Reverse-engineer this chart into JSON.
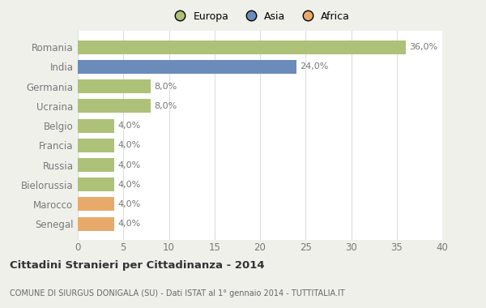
{
  "categories": [
    "Romania",
    "India",
    "Germania",
    "Ucraina",
    "Belgio",
    "Francia",
    "Russia",
    "Bielorussia",
    "Marocco",
    "Senegal"
  ],
  "values": [
    36.0,
    24.0,
    8.0,
    8.0,
    4.0,
    4.0,
    4.0,
    4.0,
    4.0,
    4.0
  ],
  "colors": [
    "#adc178",
    "#6b8cba",
    "#adc178",
    "#adc178",
    "#adc178",
    "#adc178",
    "#adc178",
    "#adc178",
    "#e8aa6a",
    "#e8aa6a"
  ],
  "legend_labels": [
    "Europa",
    "Asia",
    "Africa"
  ],
  "legend_colors": [
    "#adc178",
    "#6b8cba",
    "#e8aa6a"
  ],
  "xlim": [
    0,
    40
  ],
  "xticks": [
    0,
    5,
    10,
    15,
    20,
    25,
    30,
    35,
    40
  ],
  "title_bold": "Cittadini Stranieri per Cittadinanza - 2014",
  "subtitle": "COMUNE DI SIURGUS DONIGALA (SU) - Dati ISTAT al 1° gennaio 2014 - TUTTITALIA.IT",
  "bg_color": "#f0f0eb",
  "plot_bg_color": "#ffffff",
  "grid_color": "#dddddd",
  "label_color": "#777777",
  "value_label_color": "#777777",
  "title_color": "#333333",
  "subtitle_color": "#666666"
}
